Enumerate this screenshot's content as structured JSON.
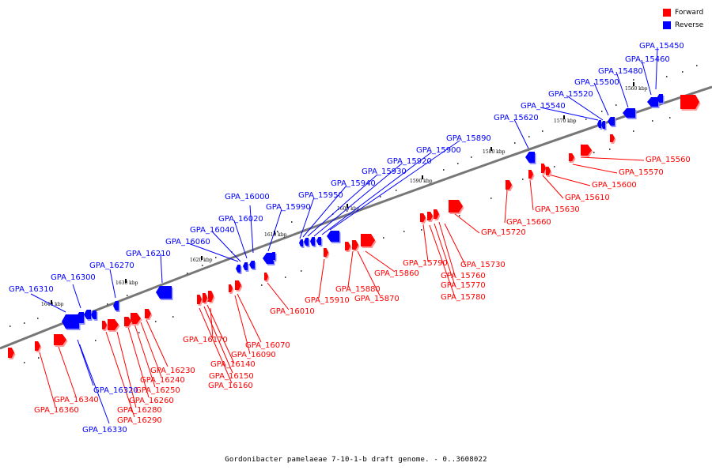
{
  "legend": {
    "items": [
      {
        "label": "Forward",
        "color": "#ff0000"
      },
      {
        "label": "Reverse",
        "color": "#0000ff"
      }
    ]
  },
  "caption": "Gordonibacter pamelaeae 7-10-1-b draft genome. - 0..3608022",
  "scale_labels": [
    "1560 kbp",
    "1570 kbp",
    "1580 kbp",
    "1590 kbp",
    "1600 kbp",
    "1610 kbp",
    "1620 kbp",
    "1630 kbp",
    "1640 kbp"
  ],
  "genes_reverse": [
    "GPA_15450",
    "GPA_15460",
    "GPA_15480",
    "GPA_15500",
    "GPA_15520",
    "GPA_15540",
    "GPA_15620",
    "GPA_15890",
    "GPA_15900",
    "GPA_15920",
    "GPA_15930",
    "GPA_15940",
    "GPA_15950",
    "GPA_15990",
    "GPA_16000",
    "GPA_16020",
    "GPA_16040",
    "GPA_16060",
    "GPA_16210",
    "GPA_16270",
    "GPA_16300",
    "GPA_16310",
    "GPA_16320",
    "GPA_16330"
  ],
  "genes_forward": [
    "GPA_15560",
    "GPA_15570",
    "GPA_15600",
    "GPA_15610",
    "GPA_15630",
    "GPA_15660",
    "GPA_15720",
    "GPA_15730",
    "GPA_15760",
    "GPA_15770",
    "GPA_15780",
    "GPA_15790",
    "GPA_15860",
    "GPA_15870",
    "GPA_15880",
    "GPA_15910",
    "GPA_16010",
    "GPA_16070",
    "GPA_16090",
    "GPA_16140",
    "GPA_16150",
    "GPA_16160",
    "GPA_16170",
    "GPA_16230",
    "GPA_16240",
    "GPA_16250",
    "GPA_16260",
    "GPA_16280",
    "GPA_16290",
    "GPA_16340",
    "GPA_16360"
  ]
}
